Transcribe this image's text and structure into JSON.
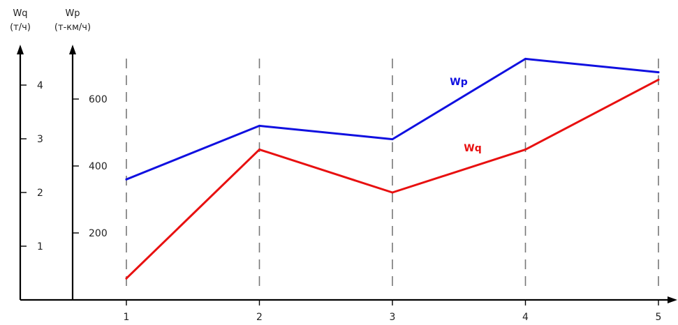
{
  "chart_data": {
    "type": "line",
    "x": [
      1,
      2,
      3,
      4,
      5
    ],
    "x_tick_labels": [
      "1",
      "2",
      "3",
      "4",
      "5"
    ],
    "left_axis_wq": {
      "label": "Wq",
      "unit": "(т/ч)",
      "ticks": [
        "1",
        "2",
        "3",
        "4"
      ],
      "tick_values": [
        1,
        2,
        3,
        4
      ]
    },
    "left_axis_wp": {
      "label": "Wp",
      "unit": "(т-км/ч)",
      "ticks": [
        "200",
        "400",
        "600"
      ],
      "tick_values": [
        200,
        400,
        600
      ]
    },
    "series": [
      {
        "name": "Wp",
        "axis": "wp",
        "color": "#1010e0",
        "values": [
          360,
          520,
          480,
          720,
          680
        ]
      },
      {
        "name": "Wq",
        "axis": "wq",
        "color": "#e81010",
        "values": [
          0.4,
          2.8,
          2.0,
          2.8,
          4.1
        ]
      }
    ],
    "grid": "vertical dashed at x ticks",
    "legend": "inline labels"
  }
}
